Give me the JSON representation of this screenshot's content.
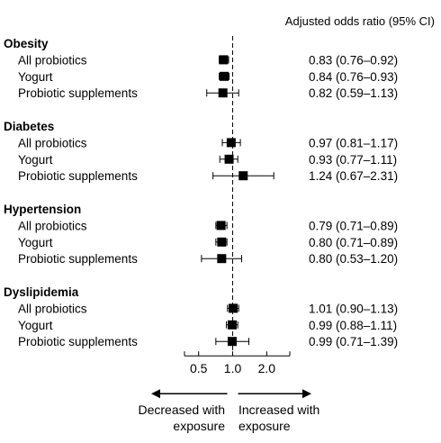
{
  "chart_data": {
    "type": "forest",
    "header": "Adjusted odds ratio (95% CI)",
    "xscale": "log",
    "xlim": [
      0.375,
      3.2
    ],
    "reference_line": 1.0,
    "xticks": [
      0.5,
      1.0,
      2.0
    ],
    "xtick_labels": [
      "0.5",
      "1.0",
      "2.0"
    ],
    "direction_labels": {
      "left": [
        "Decreased with",
        "exposure"
      ],
      "right": [
        "Increased with",
        "exposure"
      ]
    },
    "groups": [
      {
        "name": "Obesity",
        "rows": [
          {
            "label": "All probiotics",
            "or": 0.83,
            "lo": 0.76,
            "hi": 0.92,
            "text": "0.83 (0.76–0.92)"
          },
          {
            "label": "Yogurt",
            "or": 0.84,
            "lo": 0.76,
            "hi": 0.93,
            "text": "0.84 (0.76–0.93)"
          },
          {
            "label": "Probiotic supplements",
            "or": 0.82,
            "lo": 0.59,
            "hi": 1.13,
            "text": "0.82 (0.59–1.13)"
          }
        ]
      },
      {
        "name": "Diabetes",
        "rows": [
          {
            "label": "All probiotics",
            "or": 0.97,
            "lo": 0.81,
            "hi": 1.17,
            "text": "0.97 (0.81–1.17)"
          },
          {
            "label": "Yogurt",
            "or": 0.93,
            "lo": 0.77,
            "hi": 1.11,
            "text": "0.93 (0.77–1.11)"
          },
          {
            "label": "Probiotic supplements",
            "or": 1.24,
            "lo": 0.67,
            "hi": 2.31,
            "text": "1.24 (0.67–2.31)"
          }
        ]
      },
      {
        "name": "Hypertension",
        "rows": [
          {
            "label": "All probiotics",
            "or": 0.79,
            "lo": 0.71,
            "hi": 0.89,
            "text": "0.79 (0.71–0.89)"
          },
          {
            "label": "Yogurt",
            "or": 0.8,
            "lo": 0.71,
            "hi": 0.89,
            "text": "0.80 (0.71–0.89)"
          },
          {
            "label": "Probiotic supplements",
            "or": 0.8,
            "lo": 0.53,
            "hi": 1.2,
            "text": "0.80 (0.53–1.20)"
          }
        ]
      },
      {
        "name": "Dyslipidemia",
        "rows": [
          {
            "label": "All probiotics",
            "or": 1.01,
            "lo": 0.9,
            "hi": 1.13,
            "text": "1.01 (0.90–1.13)"
          },
          {
            "label": "Yogurt",
            "or": 0.99,
            "lo": 0.88,
            "hi": 1.11,
            "text": "0.99 (0.88–1.11)"
          },
          {
            "label": "Probiotic supplements",
            "or": 0.99,
            "lo": 0.71,
            "hi": 1.39,
            "text": "0.99 (0.71–1.39)"
          }
        ]
      }
    ]
  }
}
